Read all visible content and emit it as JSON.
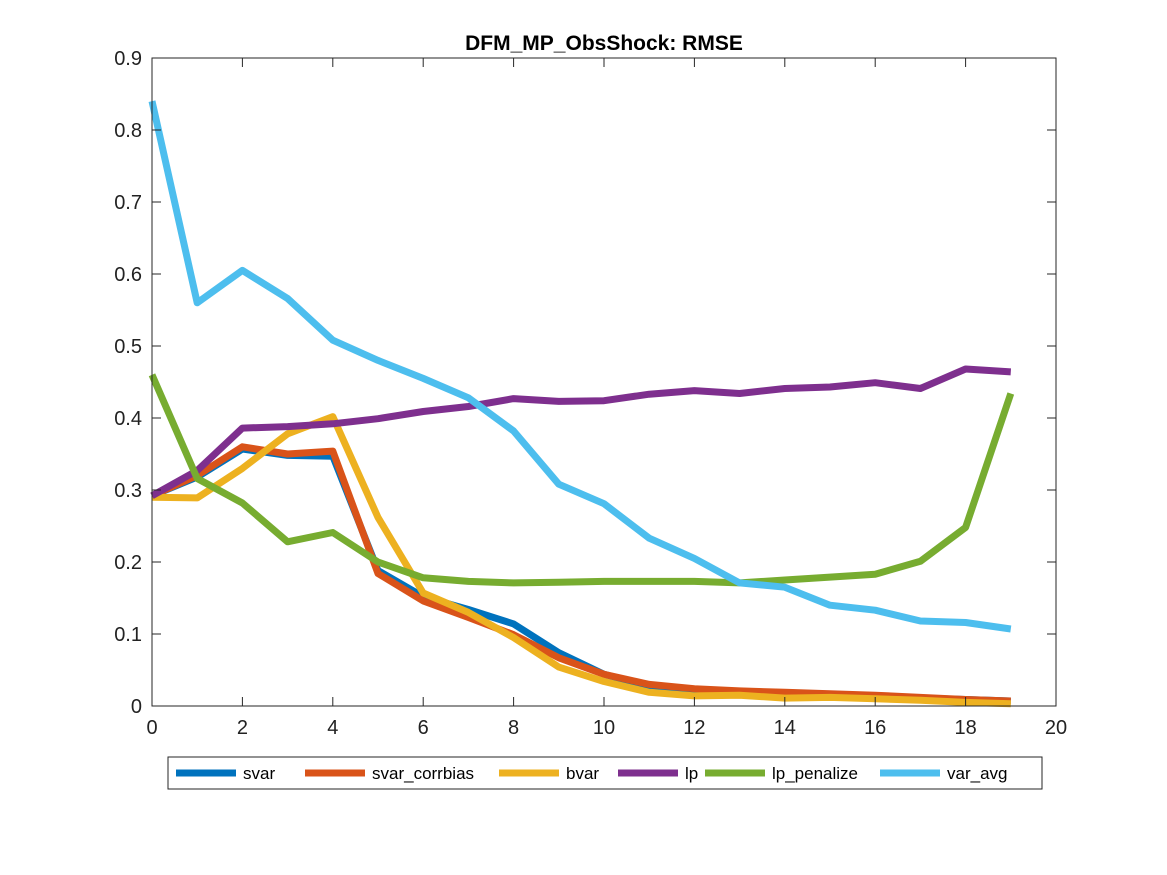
{
  "chart_data": {
    "type": "line",
    "title": "DFM_MP_ObsShock: RMSE",
    "xlabel": "",
    "ylabel": "",
    "xlim": [
      0,
      20
    ],
    "ylim": [
      0,
      0.9
    ],
    "xticks": [
      0,
      2,
      4,
      6,
      8,
      10,
      12,
      14,
      16,
      18,
      20
    ],
    "xtick_labels": [
      "0",
      "2",
      "4",
      "6",
      "8",
      "10",
      "12",
      "14",
      "16",
      "18",
      "20"
    ],
    "yticks": [
      0,
      0.1,
      0.2,
      0.3,
      0.4,
      0.5,
      0.6,
      0.7,
      0.8,
      0.9
    ],
    "ytick_labels": [
      "0",
      "0.1",
      "0.2",
      "0.3",
      "0.4",
      "0.5",
      "0.6",
      "0.7",
      "0.8",
      "0.9"
    ],
    "grid": false,
    "legend_position": "bottom-outside",
    "x": [
      0,
      1,
      2,
      3,
      4,
      5,
      6,
      7,
      8,
      9,
      10,
      11,
      12,
      13,
      14,
      15,
      16,
      17,
      18,
      19
    ],
    "series": [
      {
        "name": "svar",
        "color": "#0072BD",
        "values": [
          0.292,
          0.318,
          0.357,
          0.348,
          0.347,
          0.188,
          0.152,
          0.134,
          0.114,
          0.074,
          0.044,
          0.027,
          0.02,
          0.019,
          0.017,
          0.015,
          0.013,
          0.011,
          0.009,
          0.007
        ]
      },
      {
        "name": "svar_corrbias",
        "color": "#D95319",
        "values": [
          0.292,
          0.32,
          0.36,
          0.35,
          0.354,
          0.184,
          0.146,
          0.123,
          0.099,
          0.067,
          0.044,
          0.03,
          0.024,
          0.021,
          0.019,
          0.017,
          0.015,
          0.012,
          0.009,
          0.007
        ]
      },
      {
        "name": "bvar",
        "color": "#EDB120",
        "values": [
          0.29,
          0.289,
          0.33,
          0.378,
          0.402,
          0.262,
          0.157,
          0.13,
          0.095,
          0.054,
          0.034,
          0.019,
          0.014,
          0.015,
          0.011,
          0.012,
          0.01,
          0.008,
          0.005,
          0.003
        ]
      },
      {
        "name": "lp",
        "color": "#7E2F8E",
        "values": [
          0.292,
          0.327,
          0.386,
          0.388,
          0.392,
          0.399,
          0.409,
          0.416,
          0.427,
          0.423,
          0.424,
          0.433,
          0.438,
          0.434,
          0.441,
          0.443,
          0.449,
          0.441,
          0.468,
          0.464
        ]
      },
      {
        "name": "lp_penalize",
        "color": "#77AC30",
        "values": [
          0.46,
          0.316,
          0.282,
          0.228,
          0.241,
          0.2,
          0.178,
          0.173,
          0.171,
          0.172,
          0.173,
          0.173,
          0.173,
          0.171,
          0.175,
          0.179,
          0.183,
          0.201,
          0.248,
          0.434
        ]
      },
      {
        "name": "var_avg",
        "color": "#4DBEEE",
        "values": [
          0.84,
          0.56,
          0.605,
          0.566,
          0.508,
          0.48,
          0.455,
          0.428,
          0.382,
          0.308,
          0.281,
          0.233,
          0.205,
          0.171,
          0.165,
          0.14,
          0.133,
          0.118,
          0.116,
          0.107
        ]
      }
    ]
  }
}
